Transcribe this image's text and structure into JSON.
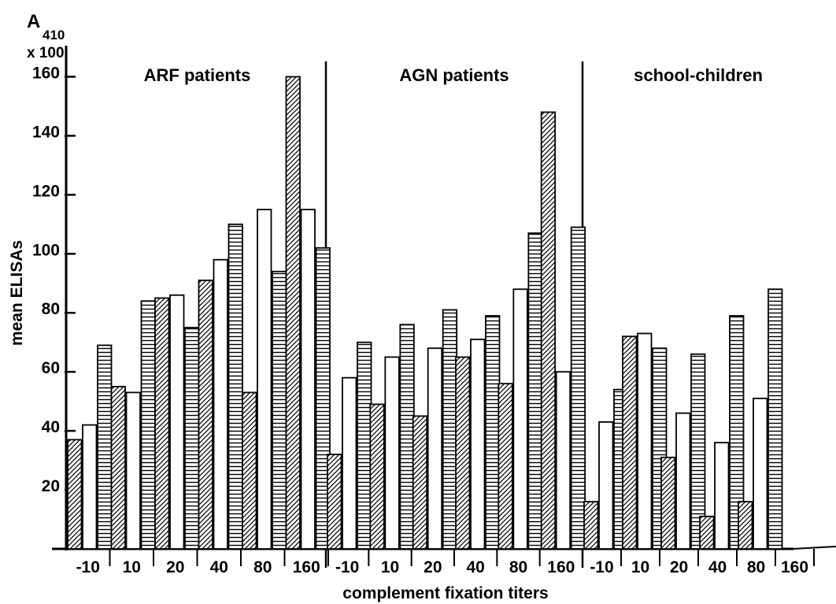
{
  "chart_data": {
    "type": "bar",
    "ylabel_line1": "A",
    "ylabel_sub": "410",
    "ylabel_line2": "x 100",
    "ylabel": "mean ELISAs",
    "xlabel": "complement fixation titers",
    "ylim": [
      0,
      170
    ],
    "yticks": [
      20,
      40,
      60,
      80,
      100,
      120,
      140,
      160
    ],
    "grid": false,
    "patterns": [
      "diagonal-hatch",
      "open",
      "horizontal-lines"
    ],
    "groups": [
      {
        "name": "ARF patients",
        "categories": [
          "-10",
          "10",
          "20",
          "40",
          "80",
          "160"
        ],
        "values": [
          [
            37,
            42,
            69
          ],
          [
            55,
            53,
            84
          ],
          [
            85,
            86,
            75
          ],
          [
            91,
            98,
            110
          ],
          [
            53,
            115,
            94
          ],
          [
            160,
            115,
            102
          ]
        ]
      },
      {
        "name": "AGN patients",
        "categories": [
          "-10",
          "10",
          "20",
          "40",
          "80",
          "160"
        ],
        "values": [
          [
            32,
            58,
            70
          ],
          [
            49,
            65,
            76
          ],
          [
            45,
            68,
            81
          ],
          [
            65,
            71,
            79
          ],
          [
            56,
            88,
            107
          ],
          [
            148,
            60,
            109
          ]
        ]
      },
      {
        "name": "school-children",
        "categories": [
          "-10",
          "10",
          "20",
          "40",
          "80",
          "160"
        ],
        "values": [
          [
            16,
            43,
            54
          ],
          [
            72,
            73,
            68
          ],
          [
            31,
            46,
            66
          ],
          [
            11,
            36,
            79
          ],
          [
            16,
            51,
            88
          ],
          [
            null,
            null,
            null
          ]
        ]
      }
    ]
  }
}
